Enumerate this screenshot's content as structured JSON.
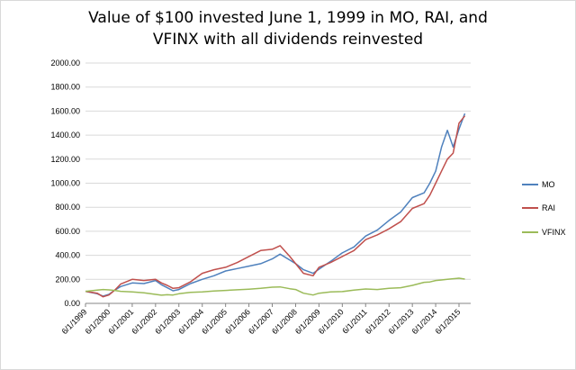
{
  "chart_data": {
    "type": "line",
    "title_lines": [
      "Value of $100 invested June 1, 1999 in MO, RAI, and",
      "VFINX with all dividends reinvested"
    ],
    "xlabel": "",
    "ylabel": "",
    "ylim": [
      0,
      2000
    ],
    "y_ticks": [
      "0.00",
      "200.00",
      "400.00",
      "600.00",
      "800.00",
      "1000.00",
      "1200.00",
      "1400.00",
      "1600.00",
      "1800.00",
      "2000.00"
    ],
    "x_tick_labels": [
      "6/1/1999",
      "6/1/2000",
      "6/1/2001",
      "6/1/2002",
      "6/1/2003",
      "6/1/2004",
      "6/1/2005",
      "6/1/2006",
      "6/1/2007",
      "6/1/2008",
      "6/1/2009",
      "6/1/2010",
      "6/1/2011",
      "6/1/2012",
      "6/1/2013",
      "6/1/2014",
      "6/1/2015"
    ],
    "x": [
      "1999-06",
      "1999-12",
      "2000-03",
      "2000-06",
      "2000-09",
      "2000-12",
      "2001-06",
      "2001-12",
      "2002-06",
      "2002-09",
      "2002-12",
      "2003-03",
      "2003-06",
      "2003-12",
      "2004-06",
      "2004-12",
      "2005-06",
      "2005-12",
      "2006-06",
      "2006-12",
      "2007-06",
      "2007-10",
      "2008-03",
      "2008-06",
      "2008-10",
      "2009-03",
      "2009-06",
      "2009-12",
      "2010-06",
      "2010-12",
      "2011-06",
      "2011-12",
      "2012-06",
      "2012-12",
      "2013-06",
      "2013-12",
      "2014-03",
      "2014-06",
      "2014-09",
      "2014-12",
      "2015-03",
      "2015-06",
      "2015-09"
    ],
    "grid": true,
    "legend_position": "right",
    "series": [
      {
        "name": "MO",
        "color": "#4f81bd",
        "values": [
          100,
          80,
          60,
          75,
          110,
          140,
          170,
          165,
          190,
          155,
          130,
          105,
          115,
          165,
          200,
          230,
          270,
          290,
          310,
          330,
          370,
          410,
          360,
          330,
          280,
          250,
          285,
          350,
          420,
          470,
          560,
          610,
          690,
          760,
          880,
          920,
          1000,
          1100,
          1300,
          1440,
          1300,
          1450,
          1580
        ]
      },
      {
        "name": "RAI",
        "color": "#c0504d",
        "values": [
          100,
          85,
          55,
          70,
          110,
          160,
          200,
          190,
          200,
          170,
          150,
          125,
          130,
          180,
          250,
          280,
          300,
          340,
          390,
          440,
          450,
          480,
          390,
          330,
          250,
          230,
          300,
          340,
          390,
          440,
          530,
          570,
          620,
          680,
          790,
          830,
          900,
          1000,
          1100,
          1200,
          1250,
          1500,
          1560
        ]
      },
      {
        "name": "VFINX",
        "color": "#9bbb59",
        "values": [
          100,
          110,
          115,
          112,
          108,
          100,
          95,
          88,
          75,
          68,
          72,
          70,
          80,
          92,
          95,
          103,
          108,
          113,
          118,
          125,
          135,
          137,
          122,
          115,
          85,
          70,
          85,
          95,
          98,
          110,
          120,
          115,
          125,
          130,
          150,
          175,
          178,
          190,
          195,
          200,
          205,
          210,
          202
        ]
      }
    ]
  }
}
